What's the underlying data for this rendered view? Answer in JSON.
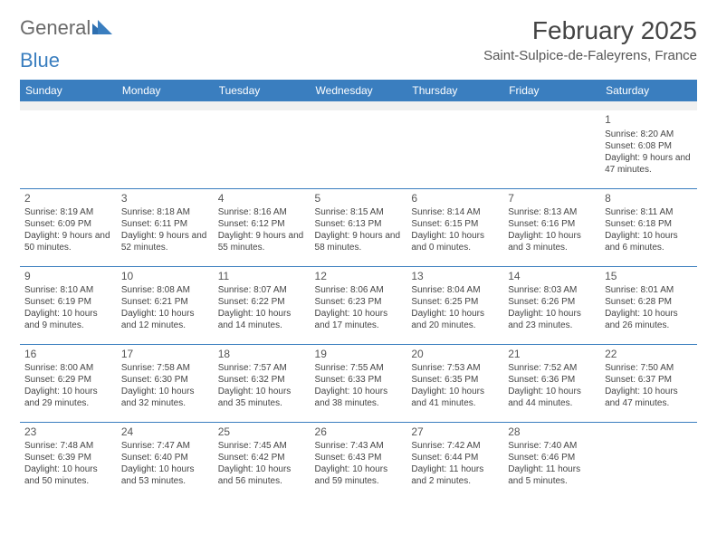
{
  "logo": {
    "text_general": "General",
    "text_blue": "Blue"
  },
  "colors": {
    "header_bg": "#3a7ebf",
    "header_text": "#ffffff",
    "border": "#3a7ebf",
    "body_text": "#444444",
    "page_bg": "#ffffff",
    "blank_bg": "#f0f0f0"
  },
  "title": "February 2025",
  "location": "Saint-Sulpice-de-Faleyrens, France",
  "weekdays": [
    "Sunday",
    "Monday",
    "Tuesday",
    "Wednesday",
    "Thursday",
    "Friday",
    "Saturday"
  ],
  "weeks": [
    [
      null,
      null,
      null,
      null,
      null,
      null,
      {
        "n": "1",
        "sr": "Sunrise: 8:20 AM",
        "ss": "Sunset: 6:08 PM",
        "dl": "Daylight: 9 hours and 47 minutes."
      }
    ],
    [
      {
        "n": "2",
        "sr": "Sunrise: 8:19 AM",
        "ss": "Sunset: 6:09 PM",
        "dl": "Daylight: 9 hours and 50 minutes."
      },
      {
        "n": "3",
        "sr": "Sunrise: 8:18 AM",
        "ss": "Sunset: 6:11 PM",
        "dl": "Daylight: 9 hours and 52 minutes."
      },
      {
        "n": "4",
        "sr": "Sunrise: 8:16 AM",
        "ss": "Sunset: 6:12 PM",
        "dl": "Daylight: 9 hours and 55 minutes."
      },
      {
        "n": "5",
        "sr": "Sunrise: 8:15 AM",
        "ss": "Sunset: 6:13 PM",
        "dl": "Daylight: 9 hours and 58 minutes."
      },
      {
        "n": "6",
        "sr": "Sunrise: 8:14 AM",
        "ss": "Sunset: 6:15 PM",
        "dl": "Daylight: 10 hours and 0 minutes."
      },
      {
        "n": "7",
        "sr": "Sunrise: 8:13 AM",
        "ss": "Sunset: 6:16 PM",
        "dl": "Daylight: 10 hours and 3 minutes."
      },
      {
        "n": "8",
        "sr": "Sunrise: 8:11 AM",
        "ss": "Sunset: 6:18 PM",
        "dl": "Daylight: 10 hours and 6 minutes."
      }
    ],
    [
      {
        "n": "9",
        "sr": "Sunrise: 8:10 AM",
        "ss": "Sunset: 6:19 PM",
        "dl": "Daylight: 10 hours and 9 minutes."
      },
      {
        "n": "10",
        "sr": "Sunrise: 8:08 AM",
        "ss": "Sunset: 6:21 PM",
        "dl": "Daylight: 10 hours and 12 minutes."
      },
      {
        "n": "11",
        "sr": "Sunrise: 8:07 AM",
        "ss": "Sunset: 6:22 PM",
        "dl": "Daylight: 10 hours and 14 minutes."
      },
      {
        "n": "12",
        "sr": "Sunrise: 8:06 AM",
        "ss": "Sunset: 6:23 PM",
        "dl": "Daylight: 10 hours and 17 minutes."
      },
      {
        "n": "13",
        "sr": "Sunrise: 8:04 AM",
        "ss": "Sunset: 6:25 PM",
        "dl": "Daylight: 10 hours and 20 minutes."
      },
      {
        "n": "14",
        "sr": "Sunrise: 8:03 AM",
        "ss": "Sunset: 6:26 PM",
        "dl": "Daylight: 10 hours and 23 minutes."
      },
      {
        "n": "15",
        "sr": "Sunrise: 8:01 AM",
        "ss": "Sunset: 6:28 PM",
        "dl": "Daylight: 10 hours and 26 minutes."
      }
    ],
    [
      {
        "n": "16",
        "sr": "Sunrise: 8:00 AM",
        "ss": "Sunset: 6:29 PM",
        "dl": "Daylight: 10 hours and 29 minutes."
      },
      {
        "n": "17",
        "sr": "Sunrise: 7:58 AM",
        "ss": "Sunset: 6:30 PM",
        "dl": "Daylight: 10 hours and 32 minutes."
      },
      {
        "n": "18",
        "sr": "Sunrise: 7:57 AM",
        "ss": "Sunset: 6:32 PM",
        "dl": "Daylight: 10 hours and 35 minutes."
      },
      {
        "n": "19",
        "sr": "Sunrise: 7:55 AM",
        "ss": "Sunset: 6:33 PM",
        "dl": "Daylight: 10 hours and 38 minutes."
      },
      {
        "n": "20",
        "sr": "Sunrise: 7:53 AM",
        "ss": "Sunset: 6:35 PM",
        "dl": "Daylight: 10 hours and 41 minutes."
      },
      {
        "n": "21",
        "sr": "Sunrise: 7:52 AM",
        "ss": "Sunset: 6:36 PM",
        "dl": "Daylight: 10 hours and 44 minutes."
      },
      {
        "n": "22",
        "sr": "Sunrise: 7:50 AM",
        "ss": "Sunset: 6:37 PM",
        "dl": "Daylight: 10 hours and 47 minutes."
      }
    ],
    [
      {
        "n": "23",
        "sr": "Sunrise: 7:48 AM",
        "ss": "Sunset: 6:39 PM",
        "dl": "Daylight: 10 hours and 50 minutes."
      },
      {
        "n": "24",
        "sr": "Sunrise: 7:47 AM",
        "ss": "Sunset: 6:40 PM",
        "dl": "Daylight: 10 hours and 53 minutes."
      },
      {
        "n": "25",
        "sr": "Sunrise: 7:45 AM",
        "ss": "Sunset: 6:42 PM",
        "dl": "Daylight: 10 hours and 56 minutes."
      },
      {
        "n": "26",
        "sr": "Sunrise: 7:43 AM",
        "ss": "Sunset: 6:43 PM",
        "dl": "Daylight: 10 hours and 59 minutes."
      },
      {
        "n": "27",
        "sr": "Sunrise: 7:42 AM",
        "ss": "Sunset: 6:44 PM",
        "dl": "Daylight: 11 hours and 2 minutes."
      },
      {
        "n": "28",
        "sr": "Sunrise: 7:40 AM",
        "ss": "Sunset: 6:46 PM",
        "dl": "Daylight: 11 hours and 5 minutes."
      },
      null
    ]
  ]
}
